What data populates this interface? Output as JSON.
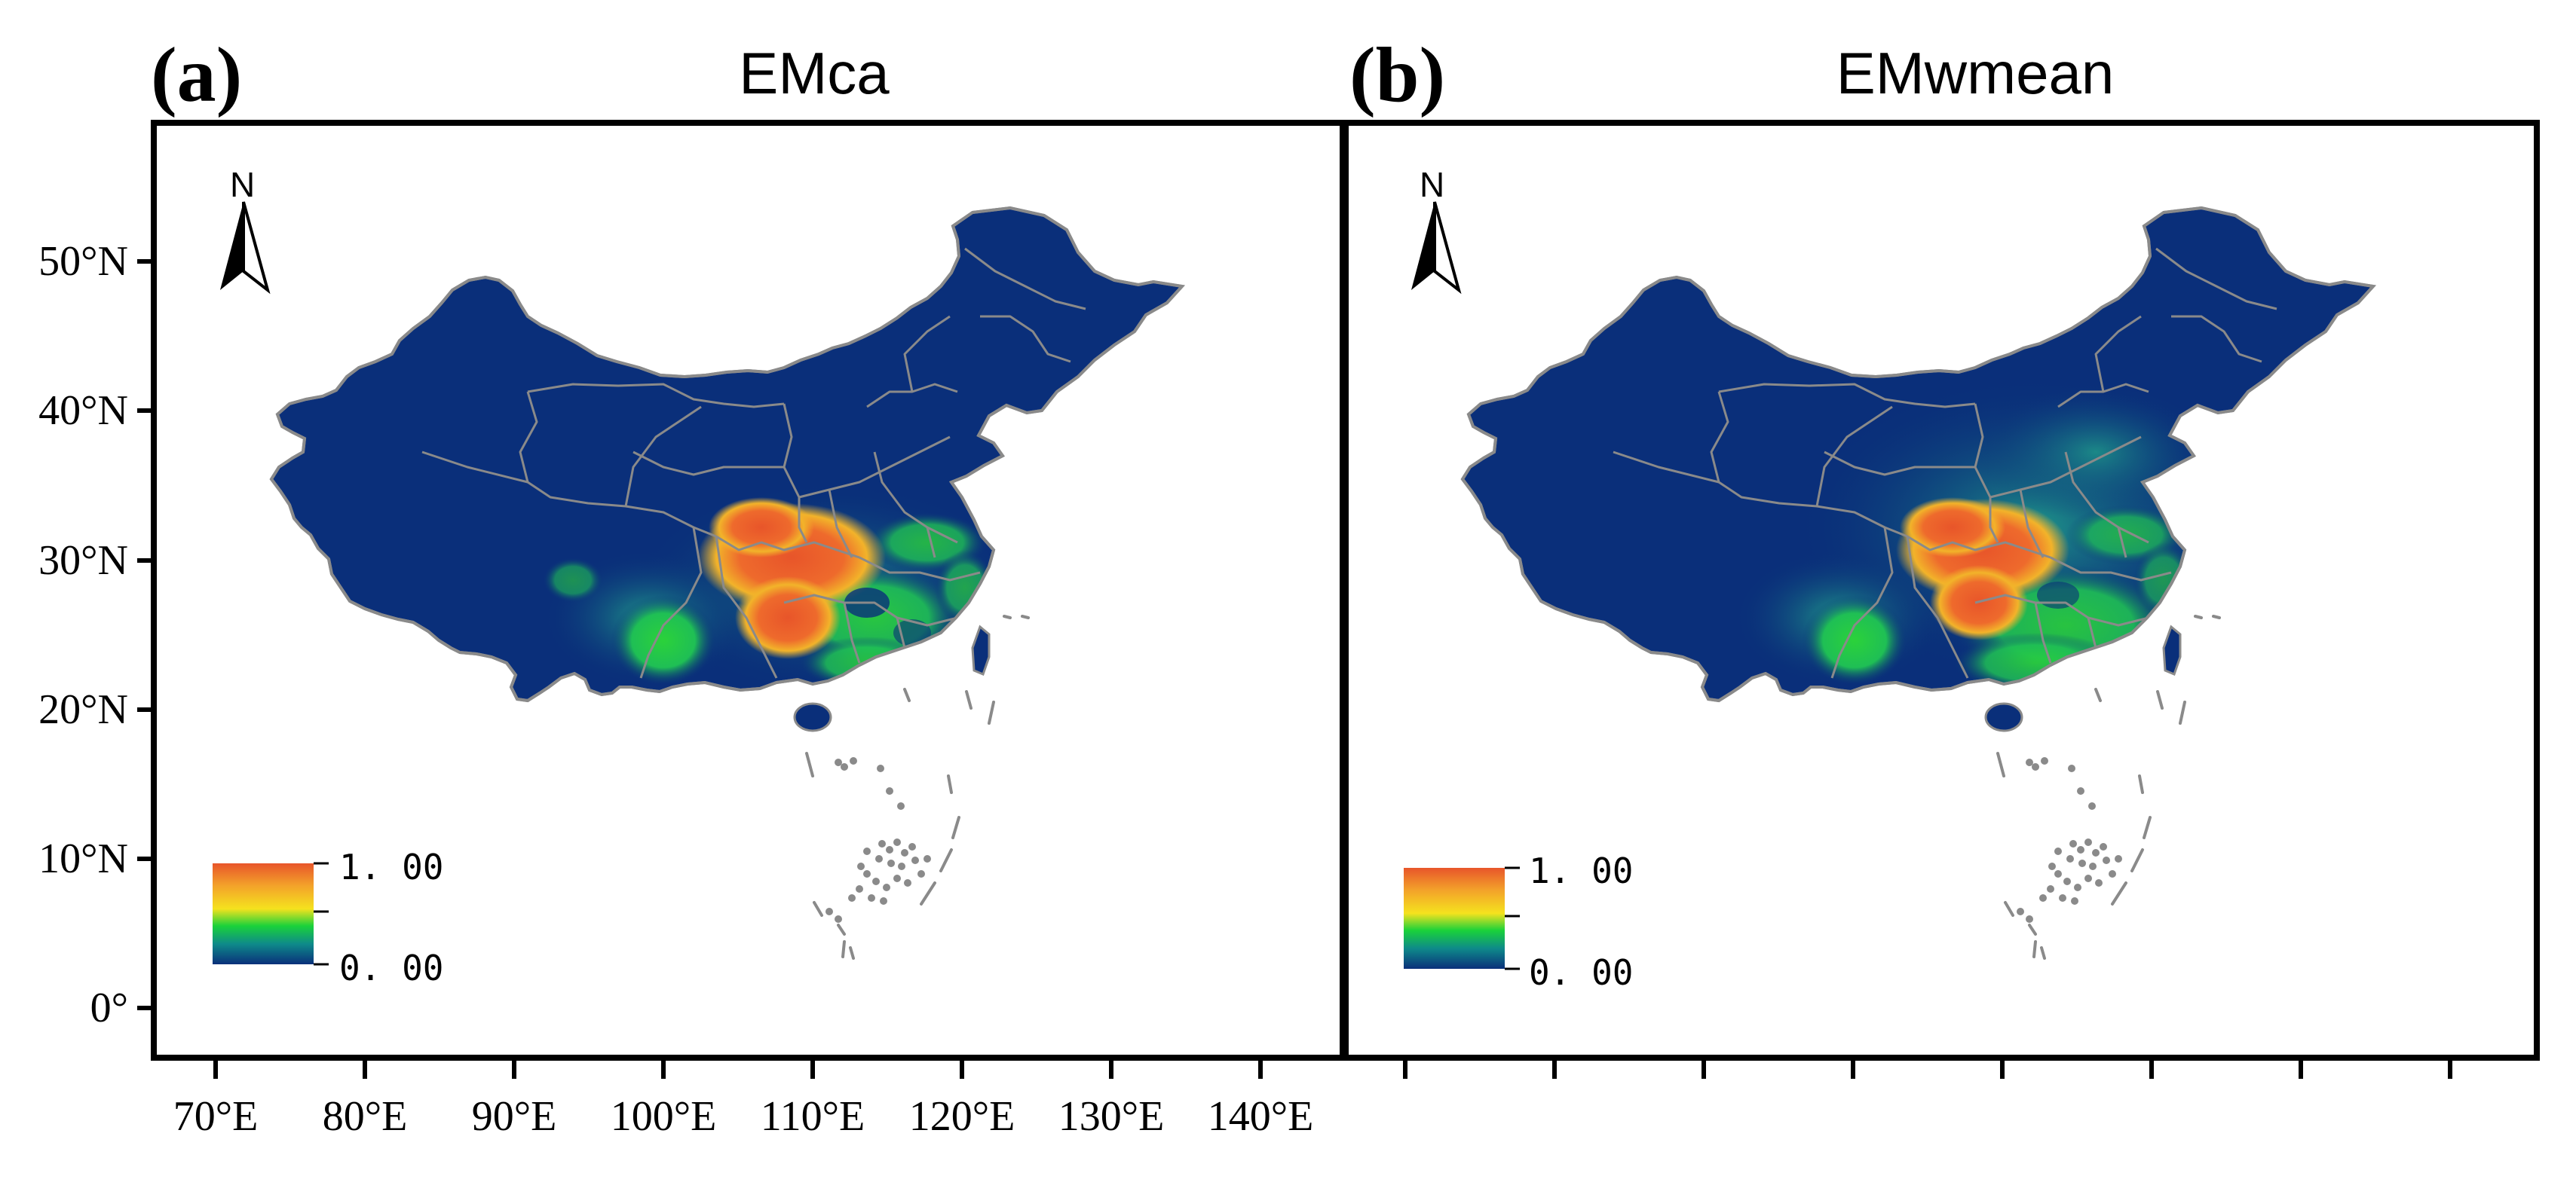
{
  "panels": [
    {
      "label": "(a)",
      "title": "EMca",
      "north": "N",
      "legend": {
        "max": "1. 00",
        "min": "0. 00"
      }
    },
    {
      "label": "(b)",
      "title": "EMwmean",
      "north": "N",
      "legend": {
        "max": "1. 00",
        "min": "0. 00"
      }
    }
  ],
  "axes": {
    "lat_labels": [
      "50°N",
      "40°N",
      "30°N",
      "20°N",
      "10°N",
      "0°"
    ],
    "lon_labels": [
      "70°E",
      "80°E",
      "90°E",
      "100°E",
      "110°E",
      "120°E",
      "130°E",
      "140°E"
    ]
  },
  "colors": {
    "background_land": "#0a2f7a",
    "boundary": "#8a8a8a",
    "suitability_high": "#e8552a",
    "suitability_mid": "#f5e21e",
    "suitability_low_mid": "#1ad23a",
    "suitability_low": "#0a2f7a"
  }
}
